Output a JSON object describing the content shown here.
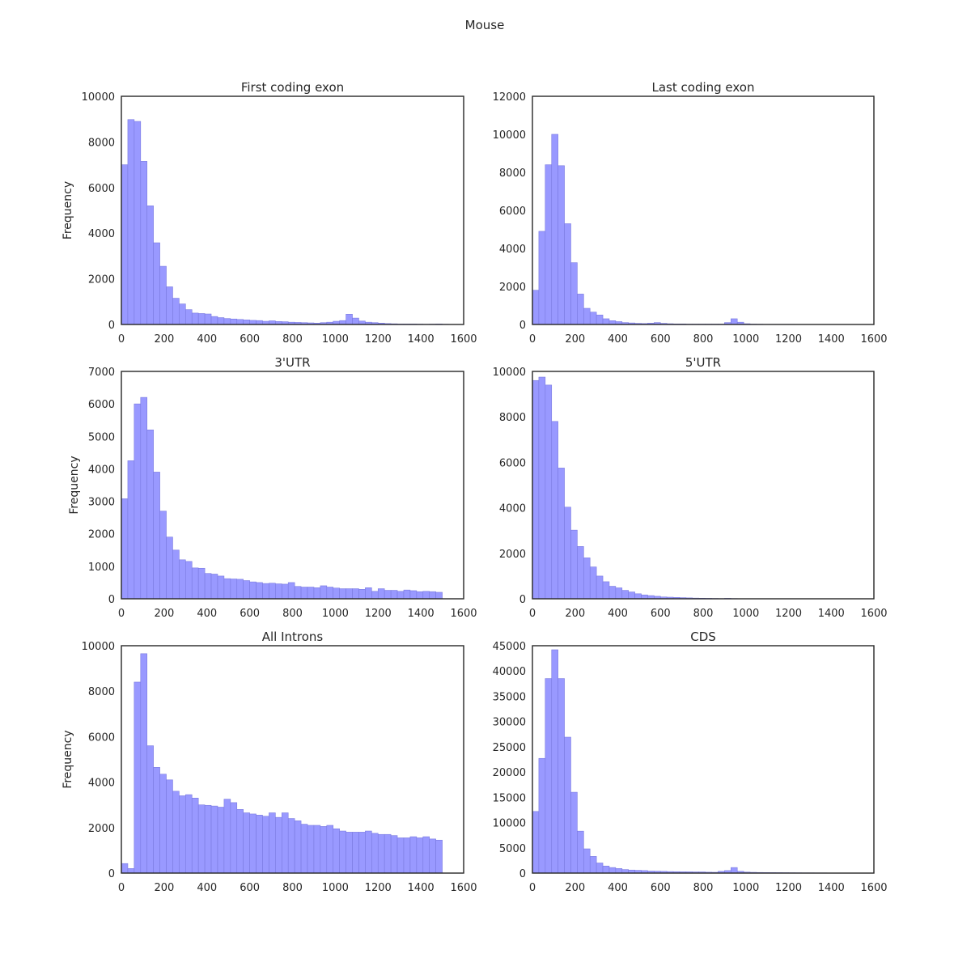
{
  "figure": {
    "title": "Mouse"
  },
  "style": {
    "bar_fill": "#9999ff",
    "bar_edge": "#7a7ae0",
    "frame_color": "#262626"
  },
  "chart_data": [
    {
      "type": "bar",
      "title": "First coding exon",
      "xlabel": "",
      "ylabel": "Frequency",
      "xlim": [
        0,
        1600
      ],
      "ylim": [
        0,
        10000
      ],
      "xticks": [
        "0",
        "200",
        "400",
        "600",
        "800",
        "1000",
        "1200",
        "1400",
        "1600"
      ],
      "yticks": [
        "0",
        "2000",
        "4000",
        "6000",
        "8000",
        "10000"
      ],
      "bin_width": 30,
      "bin_start": 0,
      "values": [
        7000,
        8980,
        8900,
        7150,
        5200,
        3580,
        2550,
        1650,
        1150,
        900,
        650,
        500,
        480,
        460,
        350,
        300,
        260,
        240,
        220,
        200,
        180,
        170,
        140,
        160,
        130,
        120,
        100,
        90,
        80,
        70,
        60,
        80,
        100,
        140,
        170,
        450,
        280,
        150,
        100,
        80,
        60,
        40,
        30,
        20,
        20,
        20,
        15,
        10,
        15,
        20,
        10
      ]
    },
    {
      "type": "bar",
      "title": "Last coding exon",
      "xlabel": "",
      "ylabel": "",
      "xlim": [
        0,
        1600
      ],
      "ylim": [
        0,
        12000
      ],
      "xticks": [
        "0",
        "200",
        "400",
        "600",
        "800",
        "1000",
        "1200",
        "1400",
        "1600"
      ],
      "yticks": [
        "0",
        "2000",
        "4000",
        "6000",
        "8000",
        "10000",
        "12000"
      ],
      "bin_width": 30,
      "bin_start": 0,
      "values": [
        1800,
        4900,
        8400,
        10000,
        8350,
        5300,
        3250,
        1600,
        850,
        650,
        500,
        300,
        200,
        150,
        100,
        80,
        60,
        50,
        70,
        100,
        60,
        40,
        30,
        30,
        20,
        20,
        20,
        20,
        20,
        20,
        100,
        300,
        120,
        40,
        20,
        15,
        10,
        10,
        10,
        10,
        10,
        5,
        5,
        5,
        5,
        5,
        5,
        5,
        5,
        5
      ]
    },
    {
      "type": "bar",
      "title": "3'UTR",
      "xlabel": "",
      "ylabel": "Frequency",
      "xlim": [
        0,
        1600
      ],
      "ylim": [
        0,
        7000
      ],
      "xticks": [
        "0",
        "200",
        "400",
        "600",
        "800",
        "1000",
        "1200",
        "1400",
        "1600"
      ],
      "yticks": [
        "0",
        "1000",
        "2000",
        "3000",
        "4000",
        "5000",
        "6000",
        "7000"
      ],
      "bin_width": 30,
      "bin_start": 0,
      "values": [
        3080,
        4250,
        6000,
        6200,
        5200,
        3900,
        2700,
        1900,
        1500,
        1200,
        1150,
        950,
        940,
        780,
        760,
        700,
        620,
        610,
        600,
        560,
        520,
        500,
        470,
        480,
        460,
        450,
        500,
        380,
        360,
        360,
        340,
        400,
        360,
        330,
        310,
        310,
        310,
        290,
        340,
        230,
        310,
        260,
        260,
        230,
        270,
        250,
        220,
        230,
        220,
        200
      ]
    },
    {
      "type": "bar",
      "title": "5'UTR",
      "xlabel": "",
      "ylabel": "",
      "xlim": [
        0,
        1600
      ],
      "ylim": [
        0,
        10000
      ],
      "xticks": [
        "0",
        "200",
        "400",
        "600",
        "800",
        "1000",
        "1200",
        "1400",
        "1600"
      ],
      "yticks": [
        "0",
        "2000",
        "4000",
        "6000",
        "8000",
        "10000"
      ],
      "bin_width": 30,
      "bin_start": 0,
      "values": [
        9600,
        9750,
        9400,
        7800,
        5750,
        4030,
        3020,
        2300,
        1800,
        1400,
        1000,
        750,
        550,
        480,
        370,
        300,
        220,
        170,
        140,
        110,
        80,
        70,
        60,
        50,
        40,
        30,
        25,
        20,
        15,
        10,
        20,
        10,
        5,
        5,
        5,
        5,
        5
      ]
    },
    {
      "type": "bar",
      "title": "All Introns",
      "xlabel": "",
      "ylabel": "Frequency",
      "xlim": [
        0,
        1600
      ],
      "ylim": [
        0,
        10000
      ],
      "xticks": [
        "0",
        "200",
        "400",
        "600",
        "800",
        "1000",
        "1200",
        "1400",
        "1600"
      ],
      "yticks": [
        "0",
        "2000",
        "4000",
        "6000",
        "8000",
        "10000"
      ],
      "bin_width": 30,
      "bin_start": 0,
      "values": [
        420,
        200,
        8400,
        9650,
        5600,
        4650,
        4350,
        4100,
        3600,
        3400,
        3450,
        3300,
        3000,
        2980,
        2950,
        2900,
        3250,
        3100,
        2800,
        2650,
        2600,
        2550,
        2500,
        2650,
        2450,
        2650,
        2400,
        2300,
        2150,
        2100,
        2100,
        2050,
        2100,
        1950,
        1850,
        1800,
        1800,
        1800,
        1850,
        1750,
        1700,
        1700,
        1650,
        1550,
        1550,
        1600,
        1550,
        1600,
        1500,
        1450
      ]
    },
    {
      "type": "bar",
      "title": "CDS",
      "xlabel": "",
      "ylabel": "",
      "xlim": [
        0,
        1600
      ],
      "ylim": [
        0,
        45000
      ],
      "xticks": [
        "0",
        "200",
        "400",
        "600",
        "800",
        "1000",
        "1200",
        "1400",
        "1600"
      ],
      "yticks": [
        "0",
        "5000",
        "10000",
        "15000",
        "20000",
        "25000",
        "30000",
        "35000",
        "40000",
        "45000"
      ],
      "bin_width": 30,
      "bin_start": 0,
      "values": [
        12200,
        22700,
        38500,
        44200,
        38500,
        26900,
        16000,
        8300,
        4800,
        3300,
        2000,
        1400,
        1100,
        900,
        700,
        600,
        550,
        500,
        400,
        380,
        350,
        300,
        280,
        260,
        250,
        230,
        230,
        180,
        160,
        350,
        500,
        1100,
        350,
        200,
        150,
        120,
        110,
        100,
        90,
        80,
        70,
        60,
        50,
        50,
        40,
        40,
        30,
        30,
        20,
        20
      ]
    }
  ]
}
